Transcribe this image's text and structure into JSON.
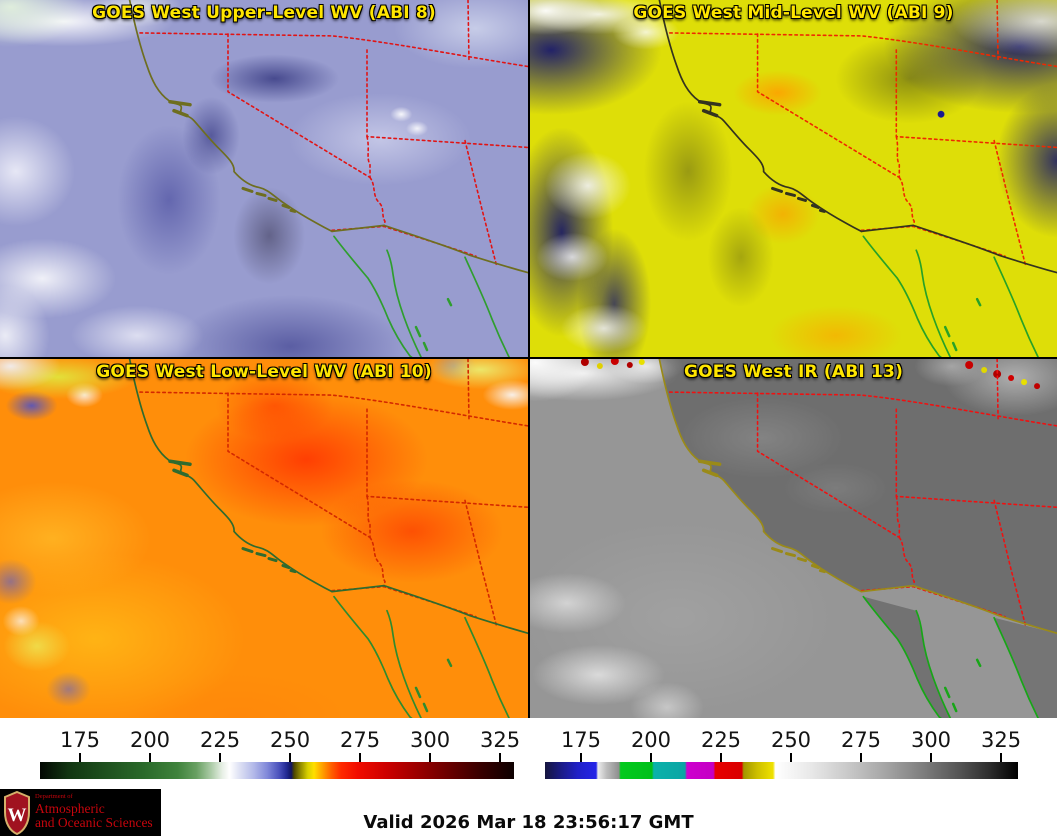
{
  "panels": [
    {
      "title": "GOES West Upper-Level WV (ABI 8)"
    },
    {
      "title": "GOES West Mid-Level WV (ABI 9)"
    },
    {
      "title": "GOES West Low-Level WV (ABI 10)"
    },
    {
      "title": "GOES West IR (ABI 13)"
    }
  ],
  "colorbars": [
    {
      "name": "wv-brightness-temperature-colorbar",
      "ticks": [
        "175",
        "200",
        "225",
        "250",
        "275",
        "300",
        "325"
      ],
      "stops": [
        [
          0,
          "#030803"
        ],
        [
          6,
          "#113511"
        ],
        [
          14,
          "#1e511e"
        ],
        [
          22,
          "#2a6a2a"
        ],
        [
          29,
          "#3f833c"
        ],
        [
          33,
          "#68a062"
        ],
        [
          36,
          "#aacaa5"
        ],
        [
          38.5,
          "#e8f0e6"
        ],
        [
          40,
          "#ffffff"
        ],
        [
          42,
          "#dfe2f4"
        ],
        [
          45,
          "#b4bae9"
        ],
        [
          48,
          "#7f87d9"
        ],
        [
          50.5,
          "#4950bb"
        ],
        [
          52,
          "#232a94"
        ],
        [
          53,
          "#111562"
        ],
        [
          53.6,
          "#4c4600"
        ],
        [
          55,
          "#938c00"
        ],
        [
          56.5,
          "#d8d000"
        ],
        [
          57.8,
          "#ffdf00"
        ],
        [
          59.5,
          "#ffa300"
        ],
        [
          61.5,
          "#ff6000"
        ],
        [
          63.5,
          "#ff2a00"
        ],
        [
          67,
          "#f10c00"
        ],
        [
          73,
          "#cd0000"
        ],
        [
          79,
          "#a00000"
        ],
        [
          86,
          "#6b0000"
        ],
        [
          93,
          "#380000"
        ],
        [
          100,
          "#0d0000"
        ]
      ]
    },
    {
      "name": "ir-brightness-temperature-colorbar",
      "ticks": [
        "175",
        "200",
        "225",
        "250",
        "275",
        "300",
        "325"
      ],
      "stops": [
        [
          0,
          "#16163e"
        ],
        [
          3,
          "#1a1a7e"
        ],
        [
          7,
          "#2020c8"
        ],
        [
          10.8,
          "#2424e8"
        ],
        [
          11.2,
          "#ececec"
        ],
        [
          13,
          "#bdbdbd"
        ],
        [
          15.6,
          "#8f8f8f"
        ],
        [
          16,
          "#04ca1e"
        ],
        [
          22.6,
          "#00c01a"
        ],
        [
          23,
          "#0ab2aa"
        ],
        [
          29.6,
          "#0aa4a4"
        ],
        [
          30,
          "#ce00ce"
        ],
        [
          35.6,
          "#c400c4"
        ],
        [
          36,
          "#e80000"
        ],
        [
          41.6,
          "#d90000"
        ],
        [
          42,
          "#a39600"
        ],
        [
          45,
          "#cfc100"
        ],
        [
          48.2,
          "#efe100"
        ],
        [
          48.7,
          "#ffffff"
        ],
        [
          56,
          "#e9e9e9"
        ],
        [
          64,
          "#c9c9c9"
        ],
        [
          72,
          "#a5a5a5"
        ],
        [
          80,
          "#7d7d7d"
        ],
        [
          88,
          "#525252"
        ],
        [
          94,
          "#2d2d2d"
        ],
        [
          100,
          "#000000"
        ]
      ]
    }
  ],
  "footer": {
    "valid_time": "Valid 2026 Mar 18 23:56:17 GMT"
  },
  "logo": {
    "dept": "Department of",
    "line1": "Atmospheric",
    "line2": "and Oceanic Sciences",
    "monogram": "W"
  },
  "colors": {
    "title_text": "#ffe600",
    "state_border_red": "#ee1414",
    "coastline_olive": "#6e6e20",
    "baja_green": "#27a227",
    "logo_red": "#c5050c",
    "page_background": "#ffffff"
  }
}
